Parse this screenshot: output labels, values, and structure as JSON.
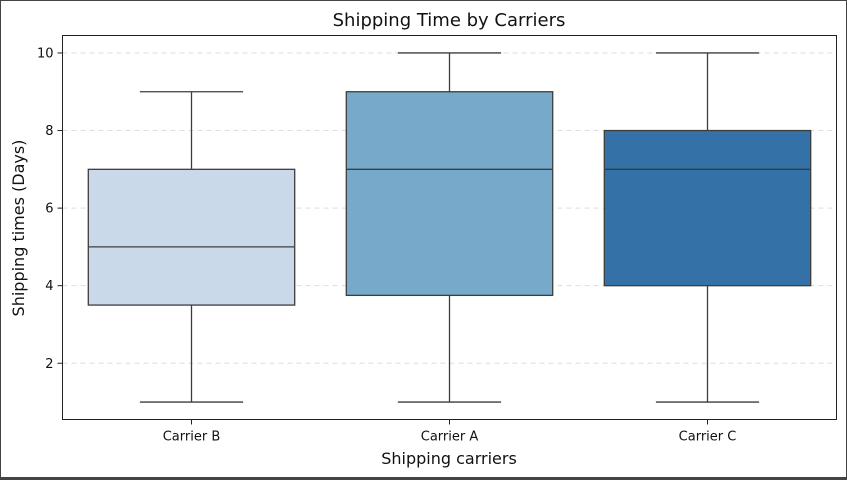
{
  "chart_data": {
    "type": "box",
    "title": "Shipping Time by Carriers",
    "xlabel": "Shipping carriers",
    "ylabel": "Shipping times (Days)",
    "ylim": [
      0.55,
      10.45
    ],
    "yticks": [
      2,
      4,
      6,
      8,
      10
    ],
    "grid": "y-dashed",
    "categories": [
      "Carrier B",
      "Carrier A",
      "Carrier C"
    ],
    "boxes": [
      {
        "category": "Carrier B",
        "whisker_low": 1,
        "q1": 3.5,
        "median": 5,
        "q3": 7,
        "whisker_high": 9,
        "color": "#c9d9ea"
      },
      {
        "category": "Carrier A",
        "whisker_low": 1,
        "q1": 3.75,
        "median": 7,
        "q3": 9,
        "whisker_high": 10,
        "color": "#77aaca"
      },
      {
        "category": "Carrier C",
        "whisker_low": 1,
        "q1": 4,
        "median": 7,
        "q3": 8,
        "whisker_high": 10,
        "color": "#3371a6"
      }
    ],
    "line_color": "#3d3d3d",
    "grid_color": "#dddddd"
  }
}
